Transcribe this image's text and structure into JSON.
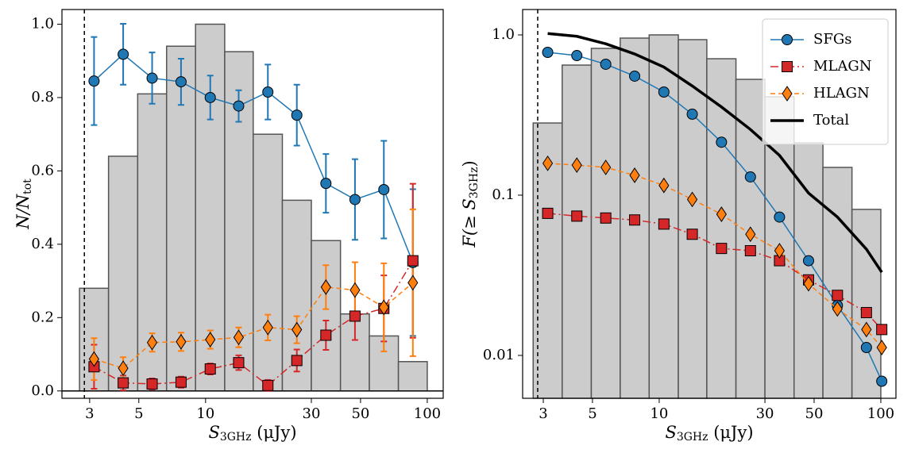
{
  "chart_data": [
    {
      "type": "line",
      "xlabel": {
        "main": "S",
        "sub": "3GHz",
        "rest": " (μJy)"
      },
      "ylabel": {
        "main": "N/N",
        "sub": "tot"
      },
      "xscale": "log",
      "yscale": "linear",
      "xlim": [
        2.25,
        118
      ],
      "ylim": [
        -0.02,
        1.04
      ],
      "xticks": [
        3,
        5,
        10,
        30,
        50,
        100
      ],
      "yticks": [
        {
          "value": 0,
          "label": "0.0"
        },
        0.2,
        0.4,
        0.6,
        0.8,
        {
          "value": 1,
          "label": "1.0"
        }
      ],
      "vline": 2.84,
      "hline": 0,
      "histogram": {
        "color": "#cccccc",
        "edgecolor": "#555555",
        "bins": [
          2.7,
          3.65,
          4.94,
          6.67,
          9.01,
          12.2,
          16.4,
          22.2,
          30.0,
          40.6,
          54.8,
          74.1,
          100
        ],
        "values": [
          0.28,
          0.64,
          0.81,
          0.94,
          1.0,
          0.925,
          0.7,
          0.52,
          0.41,
          0.21,
          0.15,
          0.08
        ]
      },
      "x": [
        3.14,
        4.25,
        5.74,
        7.75,
        10.5,
        14.1,
        19.1,
        25.8,
        34.9,
        47.2,
        63.7,
        86.1
      ],
      "series": [
        {
          "name": "SFGs",
          "color": "#1f77b4",
          "marker": "circle",
          "linestyle": "solid",
          "values": [
            0.845,
            0.918,
            0.853,
            0.843,
            0.8,
            0.777,
            0.815,
            0.752,
            0.566,
            0.522,
            0.549,
            0.35
          ],
          "errors": [
            0.12,
            0.083,
            0.07,
            0.063,
            0.06,
            0.043,
            0.075,
            0.083,
            0.08,
            0.11,
            0.133,
            0.2
          ]
        },
        {
          "name": "MLAGN",
          "color": "#d62728",
          "marker": "square",
          "linestyle": "dashdot",
          "values": [
            0.066,
            0.022,
            0.019,
            0.024,
            0.06,
            0.077,
            0.015,
            0.083,
            0.152,
            0.204,
            0.225,
            0.355
          ],
          "errors": [
            0.06,
            0.02,
            0.015,
            0.015,
            0.015,
            0.02,
            0.015,
            0.03,
            0.04,
            0.065,
            0.09,
            0.21
          ]
        },
        {
          "name": "HLAGN",
          "color": "#ff7f0e",
          "marker": "diamond",
          "linestyle": "dashed",
          "values": [
            0.087,
            0.062,
            0.132,
            0.134,
            0.14,
            0.146,
            0.173,
            0.167,
            0.283,
            0.275,
            0.228,
            0.295
          ],
          "errors": [
            0.057,
            0.03,
            0.025,
            0.025,
            0.025,
            0.027,
            0.035,
            0.037,
            0.06,
            0.076,
            0.12,
            0.2
          ]
        }
      ]
    },
    {
      "type": "line",
      "xlabel": {
        "main": "S",
        "sub": "3GHz",
        "rest": " (μJy)"
      },
      "ylabel": {
        "main": "F(≥ S",
        "sub": "3GHz",
        "rest": ")"
      },
      "xscale": "log",
      "yscale": "log",
      "xlim": [
        2.42,
        117
      ],
      "ylim": [
        0.0054,
        1.44
      ],
      "xticks": [
        3,
        5,
        10,
        30,
        50,
        100
      ],
      "yticks": [
        0.01,
        0.1,
        {
          "value": 1,
          "label": "1.0"
        }
      ],
      "vline": 2.83,
      "legend": "upper right",
      "histogram": {
        "color": "#cccccc",
        "edgecolor": "#555555",
        "bins": [
          2.7,
          3.65,
          4.94,
          6.67,
          9.01,
          12.2,
          16.4,
          22.2,
          30.0,
          40.6,
          54.8,
          74.1,
          100
        ],
        "values": [
          0.282,
          0.648,
          0.824,
          0.955,
          1.0,
          0.934,
          0.71,
          0.528,
          0.411,
          0.212,
          0.149,
          0.0815
        ]
      },
      "x": [
        3.14,
        4.25,
        5.74,
        7.75,
        10.5,
        14.1,
        19.1,
        25.8,
        34.9,
        47.2,
        63.7,
        86.1,
        101
      ],
      "series": [
        {
          "name": "SFGs",
          "color": "#1f77b4",
          "marker": "circle",
          "linestyle": "solid",
          "values": [
            0.778,
            0.743,
            0.656,
            0.553,
            0.44,
            0.32,
            0.214,
            0.13,
            0.073,
            0.039,
            0.0205,
            0.0112,
            0.0069
          ]
        },
        {
          "name": "MLAGN",
          "color": "#d62728",
          "marker": "square",
          "linestyle": "dashdot",
          "values": [
            0.077,
            0.074,
            0.072,
            0.07,
            0.066,
            0.057,
            0.0465,
            0.045,
            0.039,
            0.0296,
            0.0237,
            0.0185,
            0.0145
          ]
        },
        {
          "name": "HLAGN",
          "color": "#ff7f0e",
          "marker": "diamond",
          "linestyle": "dashed",
          "values": [
            0.158,
            0.154,
            0.149,
            0.133,
            0.115,
            0.094,
            0.076,
            0.057,
            0.045,
            0.028,
            0.0195,
            0.0145,
            0.0112
          ]
        },
        {
          "name": "Total",
          "color": "#000000",
          "marker": "none",
          "linestyle": "thick",
          "values": [
            1.02,
            0.98,
            0.88,
            0.76,
            0.63,
            0.48,
            0.355,
            0.257,
            0.177,
            0.103,
            0.073,
            0.046,
            0.033
          ]
        }
      ]
    }
  ]
}
